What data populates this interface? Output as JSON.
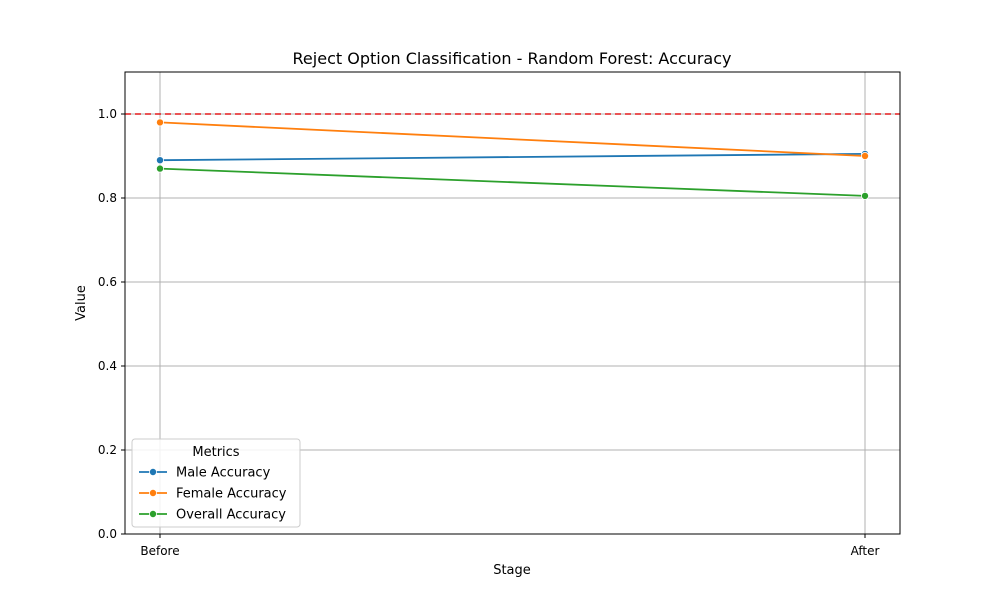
{
  "chart_data": {
    "type": "line",
    "title": "Reject Option Classification - Random Forest: Accuracy",
    "xlabel": "Stage",
    "ylabel": "Value",
    "categories": [
      "Before",
      "After"
    ],
    "ylim": [
      0,
      1.1
    ],
    "yticks": [
      "0.0",
      "0.2",
      "0.4",
      "0.6",
      "0.8",
      "1.0"
    ],
    "grid": true,
    "reference_line": {
      "y": 1.0,
      "color": "#e41a1c",
      "style": "dashed"
    },
    "legend": {
      "title": "Metrics",
      "placement": "lower-left"
    },
    "series": [
      {
        "name": "Male Accuracy",
        "color": "#1f77b4",
        "values": [
          0.89,
          0.905
        ]
      },
      {
        "name": "Female Accuracy",
        "color": "#ff7f0e",
        "values": [
          0.98,
          0.9
        ]
      },
      {
        "name": "Overall Accuracy",
        "color": "#2ca02c",
        "values": [
          0.87,
          0.805
        ]
      }
    ]
  }
}
